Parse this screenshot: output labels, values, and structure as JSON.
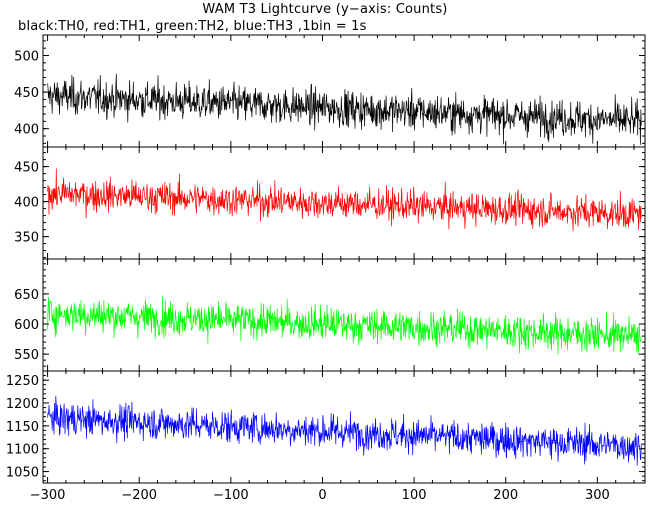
{
  "chart_data": {
    "type": "line",
    "title": "WAM T3 Lightcurve (y−axis: Counts)",
    "subtitle": "black:TH0, red:TH1, green:TH2, blue:TH3 ,1bin = 1s",
    "xlim": [
      -305,
      352
    ],
    "x_ticks": [
      -300,
      -200,
      -100,
      0,
      100,
      200,
      300
    ],
    "x_tick_labels": [
      "−300",
      "−200",
      "−100",
      "0",
      "100",
      "200",
      "300"
    ],
    "grid": false,
    "series": [
      {
        "name": "TH0",
        "color": "#000000",
        "ylim": [
          375,
          528
        ],
        "yticks": [
          400,
          450,
          500
        ],
        "ytick_labels": [
          "400",
          "450",
          "500"
        ],
        "x_range": [
          -300,
          348
        ],
        "mean_start": 445,
        "mean_end": 410,
        "noise": 22
      },
      {
        "name": "TH1",
        "color": "#ff0000",
        "ylim": [
          318,
          478
        ],
        "yticks": [
          350,
          400,
          450
        ],
        "ytick_labels": [
          "350",
          "400",
          "450"
        ],
        "x_range": [
          -300,
          348
        ],
        "mean_start": 412,
        "mean_end": 382,
        "noise": 20
      },
      {
        "name": "TH2",
        "color": "#00ff00",
        "ylim": [
          522,
          708
        ],
        "yticks": [
          550,
          600,
          650
        ],
        "ytick_labels": [
          "550",
          "600",
          "650"
        ],
        "x_range": [
          -300,
          348
        ],
        "mean_start": 618,
        "mean_end": 580,
        "noise": 25
      },
      {
        "name": "TH3",
        "color": "#0000ff",
        "ylim": [
          1025,
          1270
        ],
        "yticks": [
          1050,
          1100,
          1150,
          1200,
          1250
        ],
        "ytick_labels": [
          "1050",
          "1100",
          "1150",
          "1200",
          "1250"
        ],
        "x_range": [
          -300,
          348
        ],
        "mean_start": 1168,
        "mean_end": 1105,
        "noise": 32
      }
    ]
  }
}
